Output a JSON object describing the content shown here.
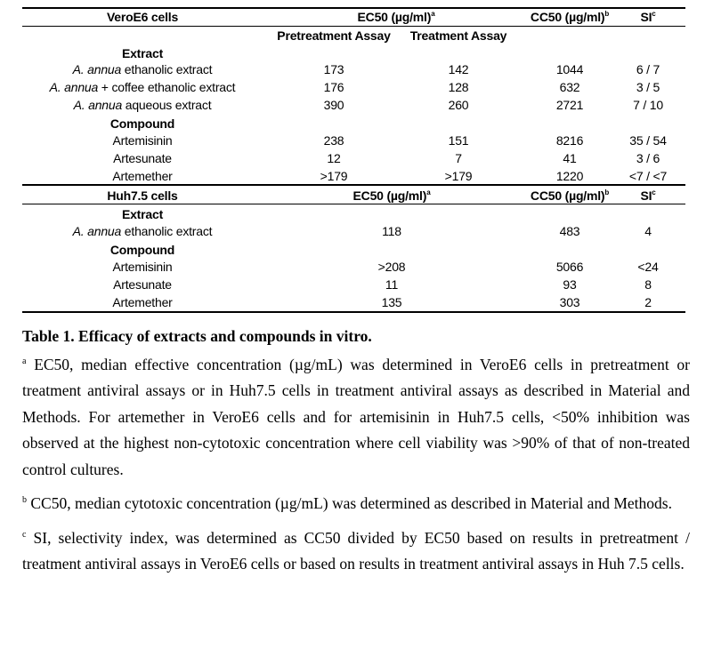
{
  "vero": {
    "header": {
      "label": "VeroE6 cells",
      "ec50": "EC50 (µg/ml)",
      "ec50_sup": "a",
      "cc50": "CC50 (µg/ml)",
      "cc50_sup": "b",
      "si": "SI",
      "si_sup": "c"
    },
    "subheader": {
      "pretreatment": "Pretreatment Assay",
      "treatment": "Treatment Assay"
    },
    "rows": [
      {
        "section": "Extract"
      },
      {
        "italic": "A. annua",
        "text": " ethanolic extract",
        "pre": "173",
        "treat": "142",
        "cc50": "1044",
        "si": "6 / 7"
      },
      {
        "italic": "A. annua",
        "text": " + coffee ethanolic extract",
        "pre": "176",
        "treat": "128",
        "cc50": "632",
        "si": "3 / 5"
      },
      {
        "italic": "A. annua",
        "text": " aqueous extract",
        "pre": "390",
        "treat": "260",
        "cc50": "2721",
        "si": "7 / 10"
      },
      {
        "section": "Compound"
      },
      {
        "text": "Artemisinin",
        "pre": "238",
        "treat": "151",
        "cc50": "8216",
        "si": "35 / 54"
      },
      {
        "text": "Artesunate",
        "pre": "12",
        "treat": "7",
        "cc50": "41",
        "si": "3 / 6"
      },
      {
        "text": "Artemether",
        "pre": ">179",
        "treat": ">179",
        "cc50": "1220",
        "si": "<7 / <7"
      }
    ]
  },
  "huh": {
    "header": {
      "label": "Huh7.5 cells",
      "ec50": "EC50 (µg/ml)",
      "ec50_sup": "a",
      "cc50": "CC50 (µg/ml)",
      "cc50_sup": "b",
      "si": "SI",
      "si_sup": "c"
    },
    "rows": [
      {
        "section": "Extract"
      },
      {
        "italic": "A. annua",
        "text": " ethanolic extract",
        "ec50": "118",
        "cc50": "483",
        "si": "4"
      },
      {
        "section": "Compound"
      },
      {
        "text": "Artemisinin",
        "ec50": ">208",
        "cc50": "5066",
        "si": "<24"
      },
      {
        "text": "Artesunate",
        "ec50": "11",
        "cc50": "93",
        "si": "8"
      },
      {
        "text": "Artemether",
        "ec50": "135",
        "cc50": "303",
        "si": "2"
      }
    ]
  },
  "caption": {
    "title": "Table 1. Efficacy of extracts and compounds in vitro.",
    "notes": [
      {
        "mark": "a",
        "text": " EC50, median effective concentration (µg/mL) was determined in VeroE6 cells in pretreatment or treatment antiviral assays or in Huh7.5 cells in treatment antiviral assays as described in Material and Methods. For artemether in VeroE6 cells and for artemisinin in Huh7.5 cells, <50% inhibition was observed at the highest non-cytotoxic concentration where cell viability was >90% of that of non-treated control cultures."
      },
      {
        "mark": "b",
        "text": " CC50, median cytotoxic concentration (µg/mL) was determined as described in Material and Methods."
      },
      {
        "mark": "c",
        "text": " SI, selectivity index, was determined as CC50 divided by EC50 based on results in pretreatment / treatment antiviral assays in VeroE6 cells or based on results in treatment antiviral assays in Huh 7.5 cells."
      }
    ]
  }
}
